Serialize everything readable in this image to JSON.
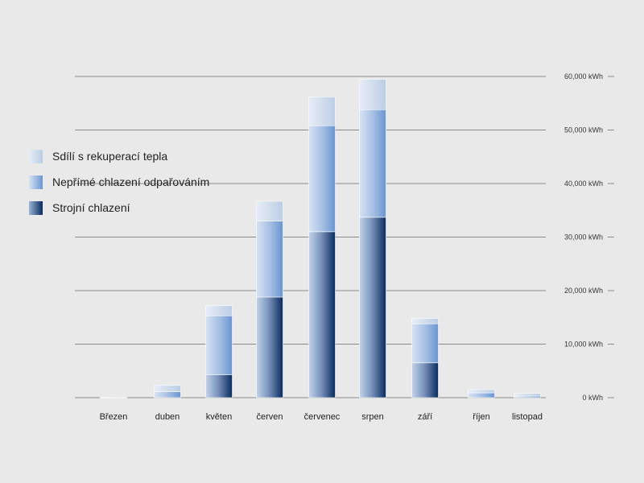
{
  "chart_data": {
    "type": "bar",
    "stacked": true,
    "categories": [
      "Březen",
      "duben",
      "květen",
      "červen",
      "červenec",
      "srpen",
      "září",
      "říjen",
      "listopad"
    ],
    "series": [
      {
        "name": "Strojní chlazení",
        "values": [
          0,
          0,
          4300,
          18800,
          31000,
          33700,
          6500,
          0,
          0
        ],
        "color": "#0a2f66"
      },
      {
        "name": "Nepřímé chlazení odpařováním",
        "values": [
          0,
          1100,
          11000,
          14200,
          19800,
          20100,
          7300,
          900,
          300
        ],
        "color": "#7ea3d8"
      },
      {
        "name": "Sdílí s rekuperací tepla",
        "values": [
          100,
          1200,
          1900,
          3700,
          5400,
          5700,
          1000,
          600,
          500
        ],
        "color": "#c9d8ec"
      }
    ],
    "yticks": [
      "0 kWh",
      "10,000 kWh",
      "20,000 kWh",
      "30,000 kWh",
      "40,000 kWh",
      "50,000 kWh",
      "60,000 kWh"
    ],
    "ylim": [
      0,
      60000
    ],
    "legend": "left",
    "grid": true
  }
}
